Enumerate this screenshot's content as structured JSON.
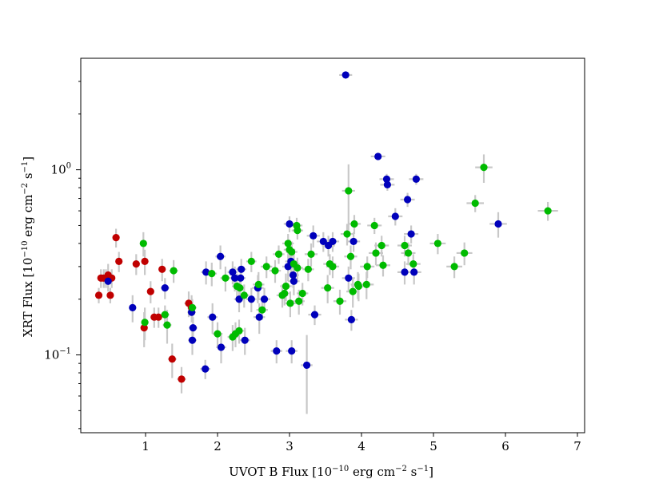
{
  "chart_data": {
    "type": "scatter",
    "title": "",
    "xlabel_main": "UVOT B Flux [10",
    "xlabel_exp1": "−10",
    "xlabel_mid": " erg cm",
    "xlabel_exp2": "−2",
    "xlabel_mid2": " s",
    "xlabel_exp3": "−1",
    "xlabel_end": "]",
    "ylabel_main": "XRT Flux [10",
    "ylabel_exp1": "−10",
    "ylabel_mid": " erg cm",
    "ylabel_exp2": "−2",
    "ylabel_mid2": " s",
    "ylabel_exp3": "−1",
    "ylabel_end": "]",
    "xlim": [
      0.1,
      7.1
    ],
    "ylim": [
      0.038,
      4.0
    ],
    "yscale": "log",
    "x_ticks": [
      1,
      2,
      3,
      4,
      5,
      6,
      7
    ],
    "x_tick_labels": [
      "1",
      "2",
      "3",
      "4",
      "5",
      "6",
      "7"
    ],
    "y_ticks": [
      0.1,
      1.0
    ],
    "y_tick_base": "10",
    "y_tick_exps": [
      "−1",
      "0"
    ],
    "grid": false,
    "colors": {
      "red": "#c00000",
      "blue": "#0000bb",
      "green": "#00bb00",
      "error": "#c8c8c8"
    },
    "series": [
      {
        "color": "red",
        "points": [
          [
            0.35,
            0.21,
            0.03,
            0.02
          ],
          [
            0.38,
            0.26,
            0.03,
            0.03
          ],
          [
            0.42,
            0.26,
            0.03,
            0.03
          ],
          [
            0.45,
            0.26,
            0.03,
            0.03
          ],
          [
            0.48,
            0.27,
            0.03,
            0.04
          ],
          [
            0.51,
            0.21,
            0.03,
            0.02
          ],
          [
            0.53,
            0.26,
            0.03,
            0.03
          ],
          [
            0.59,
            0.43,
            0.04,
            0.05
          ],
          [
            0.63,
            0.32,
            0.04,
            0.04
          ],
          [
            0.87,
            0.31,
            0.05,
            0.04
          ],
          [
            0.98,
            0.14,
            0.05,
            0.03
          ],
          [
            0.99,
            0.32,
            0.05,
            0.05
          ],
          [
            1.07,
            0.22,
            0.05,
            0.03
          ],
          [
            1.12,
            0.16,
            0.05,
            0.02
          ],
          [
            1.18,
            0.16,
            0.05,
            0.02
          ],
          [
            1.23,
            0.29,
            0.05,
            0.04
          ],
          [
            1.37,
            0.095,
            0.06,
            0.02
          ],
          [
            1.5,
            0.074,
            0.06,
            0.012
          ],
          [
            1.6,
            0.19,
            0.06,
            0.03
          ],
          [
            1.64,
            0.18,
            0.06,
            0.03
          ]
        ]
      },
      {
        "color": "blue",
        "points": [
          [
            0.48,
            0.25,
            0.05,
            0.03
          ],
          [
            0.82,
            0.18,
            0.05,
            0.03
          ],
          [
            1.27,
            0.23,
            0.06,
            0.03
          ],
          [
            1.64,
            0.17,
            0.06,
            0.02
          ],
          [
            1.65,
            0.12,
            0.06,
            0.02
          ],
          [
            1.66,
            0.14,
            0.06,
            0.02
          ],
          [
            1.83,
            0.084,
            0.07,
            0.01
          ],
          [
            1.84,
            0.28,
            0.07,
            0.04
          ],
          [
            1.93,
            0.16,
            0.07,
            0.03
          ],
          [
            2.04,
            0.34,
            0.07,
            0.05
          ],
          [
            2.05,
            0.11,
            0.07,
            0.02
          ],
          [
            2.21,
            0.28,
            0.07,
            0.04
          ],
          [
            2.24,
            0.26,
            0.07,
            0.04
          ],
          [
            2.3,
            0.2,
            0.07,
            0.03
          ],
          [
            2.32,
            0.26,
            0.07,
            0.04
          ],
          [
            2.33,
            0.29,
            0.07,
            0.04
          ],
          [
            2.38,
            0.12,
            0.07,
            0.02
          ],
          [
            2.47,
            0.2,
            0.07,
            0.03
          ],
          [
            2.56,
            0.23,
            0.08,
            0.04
          ],
          [
            2.58,
            0.16,
            0.08,
            0.03
          ],
          [
            2.65,
            0.2,
            0.08,
            0.03
          ],
          [
            2.82,
            0.105,
            0.08,
            0.015
          ],
          [
            2.98,
            0.3,
            0.08,
            0.05
          ],
          [
            3.0,
            0.51,
            0.08,
            0.05
          ],
          [
            3.02,
            0.32,
            0.08,
            0.05
          ],
          [
            3.03,
            0.105,
            0.08,
            0.015
          ],
          [
            3.05,
            0.27,
            0.08,
            0.04
          ],
          [
            3.06,
            0.25,
            0.08,
            0.04
          ],
          [
            3.24,
            0.088,
            0.08,
            0.04
          ],
          [
            3.33,
            0.44,
            0.09,
            0.06
          ],
          [
            3.35,
            0.165,
            0.09,
            0.02
          ],
          [
            3.47,
            0.41,
            0.09,
            0.05
          ],
          [
            3.54,
            0.39,
            0.09,
            0.05
          ],
          [
            3.6,
            0.41,
            0.09,
            0.05
          ],
          [
            3.78,
            3.25,
            0.09,
            0.15
          ],
          [
            3.82,
            0.26,
            0.09,
            0.04
          ],
          [
            3.86,
            0.155,
            0.09,
            0.02
          ],
          [
            3.89,
            0.41,
            0.09,
            0.05
          ],
          [
            4.23,
            1.18,
            0.1,
            0.05
          ],
          [
            4.35,
            0.89,
            0.1,
            0.06
          ],
          [
            4.36,
            0.83,
            0.1,
            0.06
          ],
          [
            4.47,
            0.56,
            0.1,
            0.06
          ],
          [
            4.6,
            0.28,
            0.1,
            0.04
          ],
          [
            4.64,
            0.69,
            0.1,
            0.06
          ],
          [
            4.69,
            0.45,
            0.1,
            0.05
          ],
          [
            4.73,
            0.28,
            0.1,
            0.04
          ],
          [
            4.76,
            0.89,
            0.1,
            0.06
          ],
          [
            5.9,
            0.51,
            0.12,
            0.08
          ]
        ]
      },
      {
        "color": "green",
        "points": [
          [
            0.97,
            0.4,
            0.05,
            0.06
          ],
          [
            0.99,
            0.15,
            0.05,
            0.03
          ],
          [
            1.3,
            0.145,
            0.06,
            0.03
          ],
          [
            1.27,
            0.165,
            0.06,
            0.02
          ],
          [
            1.39,
            0.285,
            0.06,
            0.04
          ],
          [
            1.65,
            0.18,
            0.06,
            0.02
          ],
          [
            1.92,
            0.275,
            0.07,
            0.04
          ],
          [
            2.0,
            0.13,
            0.07,
            0.02
          ],
          [
            2.11,
            0.26,
            0.07,
            0.04
          ],
          [
            2.21,
            0.125,
            0.07,
            0.02
          ],
          [
            2.25,
            0.13,
            0.07,
            0.02
          ],
          [
            2.27,
            0.235,
            0.07,
            0.04
          ],
          [
            2.3,
            0.135,
            0.07,
            0.02
          ],
          [
            2.31,
            0.23,
            0.07,
            0.04
          ],
          [
            2.37,
            0.21,
            0.07,
            0.03
          ],
          [
            2.47,
            0.32,
            0.07,
            0.04
          ],
          [
            2.57,
            0.24,
            0.08,
            0.04
          ],
          [
            2.62,
            0.175,
            0.08,
            0.02
          ],
          [
            2.68,
            0.3,
            0.08,
            0.04
          ],
          [
            2.8,
            0.285,
            0.08,
            0.04
          ],
          [
            2.85,
            0.35,
            0.08,
            0.04
          ],
          [
            2.9,
            0.21,
            0.08,
            0.03
          ],
          [
            2.93,
            0.215,
            0.08,
            0.03
          ],
          [
            2.95,
            0.235,
            0.08,
            0.04
          ],
          [
            2.98,
            0.4,
            0.08,
            0.05
          ],
          [
            3.0,
            0.37,
            0.08,
            0.05
          ],
          [
            3.01,
            0.19,
            0.08,
            0.03
          ],
          [
            3.03,
            0.36,
            0.08,
            0.05
          ],
          [
            3.06,
            0.31,
            0.08,
            0.04
          ],
          [
            3.1,
            0.5,
            0.08,
            0.05
          ],
          [
            3.11,
            0.47,
            0.08,
            0.05
          ],
          [
            3.11,
            0.295,
            0.08,
            0.04
          ],
          [
            3.13,
            0.195,
            0.08,
            0.03
          ],
          [
            3.18,
            0.215,
            0.08,
            0.03
          ],
          [
            3.26,
            0.29,
            0.08,
            0.04
          ],
          [
            3.3,
            0.35,
            0.09,
            0.05
          ],
          [
            3.53,
            0.23,
            0.09,
            0.04
          ],
          [
            3.56,
            0.31,
            0.09,
            0.04
          ],
          [
            3.6,
            0.3,
            0.09,
            0.04
          ],
          [
            3.7,
            0.195,
            0.09,
            0.03
          ],
          [
            3.8,
            0.45,
            0.09,
            0.06
          ],
          [
            3.82,
            0.77,
            0.09,
            0.3
          ],
          [
            3.85,
            0.34,
            0.09,
            0.05
          ],
          [
            3.88,
            0.22,
            0.09,
            0.04
          ],
          [
            3.9,
            0.51,
            0.09,
            0.06
          ],
          [
            3.95,
            0.24,
            0.1,
            0.04
          ],
          [
            3.96,
            0.235,
            0.1,
            0.04
          ],
          [
            4.07,
            0.24,
            0.1,
            0.04
          ],
          [
            4.08,
            0.3,
            0.1,
            0.04
          ],
          [
            4.18,
            0.5,
            0.1,
            0.05
          ],
          [
            4.2,
            0.355,
            0.1,
            0.05
          ],
          [
            4.28,
            0.39,
            0.1,
            0.05
          ],
          [
            4.3,
            0.305,
            0.1,
            0.04
          ],
          [
            4.6,
            0.39,
            0.1,
            0.05
          ],
          [
            4.65,
            0.355,
            0.1,
            0.05
          ],
          [
            4.72,
            0.31,
            0.1,
            0.04
          ],
          [
            5.06,
            0.4,
            0.11,
            0.05
          ],
          [
            5.29,
            0.3,
            0.11,
            0.04
          ],
          [
            5.43,
            0.355,
            0.11,
            0.05
          ],
          [
            5.58,
            0.66,
            0.12,
            0.07
          ],
          [
            5.7,
            1.03,
            0.12,
            0.18
          ],
          [
            6.59,
            0.6,
            0.14,
            0.07
          ]
        ]
      }
    ]
  }
}
